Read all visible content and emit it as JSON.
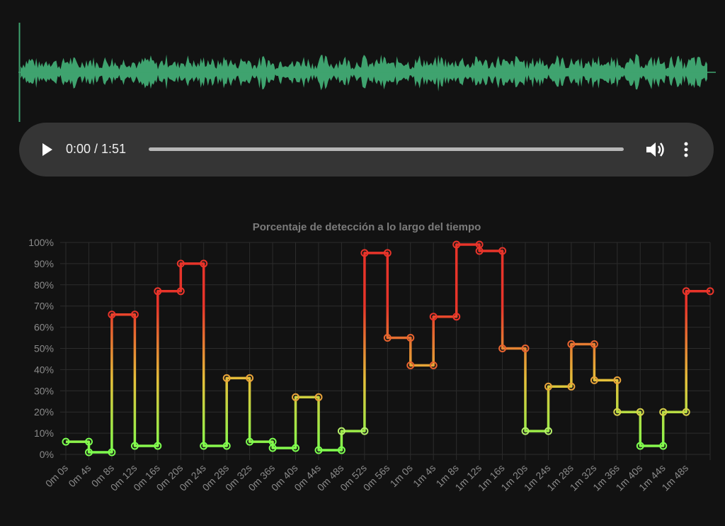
{
  "player": {
    "time_display": "0:00 / 1:51",
    "play_icon": "play-icon",
    "volume_icon": "volume-icon",
    "more_icon": "more-vertical-icon",
    "progress": 0
  },
  "waveform": {
    "color": "#3fa36f",
    "cursor_color": "#3fa36f"
  },
  "chart_data": {
    "type": "line",
    "step": true,
    "title": "Porcentaje de detección a lo largo del tiempo",
    "xlabel": "",
    "ylabel": "",
    "categories": [
      "0m 0s",
      "0m 4s",
      "0m 8s",
      "0m 12s",
      "0m 16s",
      "0m 20s",
      "0m 24s",
      "0m 28s",
      "0m 32s",
      "0m 36s",
      "0m 40s",
      "0m 44s",
      "0m 48s",
      "0m 52s",
      "0m 56s",
      "1m 0s",
      "1m 4s",
      "1m 8s",
      "1m 12s",
      "1m 16s",
      "1m 20s",
      "1m 24s",
      "1m 28s",
      "1m 32s",
      "1m 36s",
      "1m 40s",
      "1m 44s",
      "1m 48s"
    ],
    "series": [
      {
        "values": [
          6,
          1,
          66,
          4,
          77,
          90,
          4,
          36,
          6,
          3,
          27,
          2,
          11,
          95,
          55,
          42,
          65,
          99,
          96,
          50,
          11,
          32,
          52,
          35,
          20,
          4,
          20,
          77
        ]
      }
    ],
    "ylim": [
      0,
      100
    ],
    "yticks": [
      "0%",
      "10%",
      "20%",
      "30%",
      "40%",
      "50%",
      "60%",
      "70%",
      "80%",
      "90%",
      "100%"
    ],
    "grid": true,
    "legend": "none",
    "colors": {
      "low": "#7cff4f",
      "mid": "#e5c13a",
      "high": "#e8342a",
      "grid": "#2c2c2c"
    }
  }
}
